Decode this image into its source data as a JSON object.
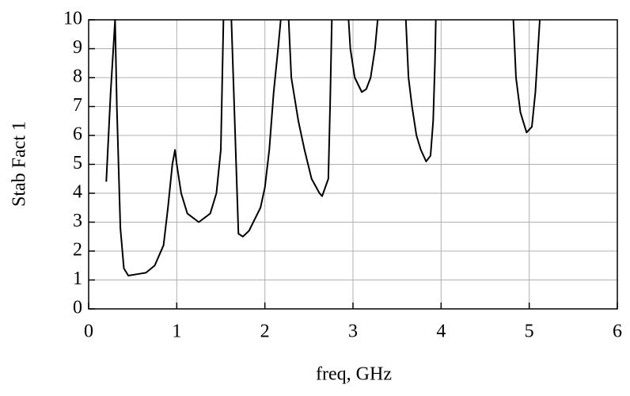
{
  "chart_data": {
    "type": "line",
    "xlabel": "freq, GHz",
    "ylabel": "Stab Fact 1",
    "x": [
      0.2,
      0.25,
      0.3,
      0.32,
      0.36,
      0.4,
      0.45,
      0.55,
      0.65,
      0.75,
      0.85,
      0.9,
      0.95,
      0.98,
      1.0,
      1.05,
      1.12,
      1.25,
      1.38,
      1.45,
      1.5,
      1.53,
      1.57,
      1.62,
      1.7,
      1.75,
      1.82,
      1.95,
      2.0,
      2.05,
      2.1,
      2.15,
      2.18,
      2.22,
      2.27,
      2.3,
      2.38,
      2.45,
      2.53,
      2.62,
      2.65,
      2.72,
      2.74,
      2.76,
      2.85,
      2.95,
      2.97,
      3.02,
      3.1,
      3.15,
      3.2,
      3.25,
      3.28,
      3.45,
      3.6,
      3.63,
      3.67,
      3.72,
      3.77,
      3.83,
      3.88,
      3.91,
      3.93,
      3.94,
      4.4,
      4.82,
      4.85,
      4.9,
      4.97,
      5.03,
      5.07,
      5.1,
      5.12
    ],
    "values": [
      4.4,
      7.5,
      10,
      7,
      2.8,
      1.4,
      1.15,
      1.2,
      1.25,
      1.5,
      2.2,
      3.5,
      5.0,
      5.5,
      5.0,
      4.0,
      3.3,
      3.0,
      3.3,
      4.0,
      5.5,
      10,
      null,
      10,
      2.6,
      2.5,
      2.7,
      3.5,
      4.2,
      5.5,
      7.5,
      9,
      10,
      null,
      10,
      8,
      6.5,
      5.5,
      4.5,
      4.0,
      3.9,
      4.5,
      7,
      10,
      null,
      10,
      9,
      8,
      7.5,
      7.6,
      8,
      9,
      10,
      null,
      10,
      8,
      7,
      6,
      5.5,
      5.1,
      5.3,
      6.5,
      8.5,
      10,
      null,
      10,
      8,
      6.8,
      6.1,
      6.3,
      7.5,
      9,
      10
    ],
    "color": "#000000",
    "xlim": [
      0,
      6
    ],
    "xticks": [
      0,
      1,
      2,
      3,
      4,
      5,
      6
    ],
    "ylim": [
      0,
      10
    ],
    "yticks": [
      0,
      1,
      2,
      3,
      4,
      5,
      6,
      7,
      8,
      9,
      10
    ],
    "grid": true
  }
}
